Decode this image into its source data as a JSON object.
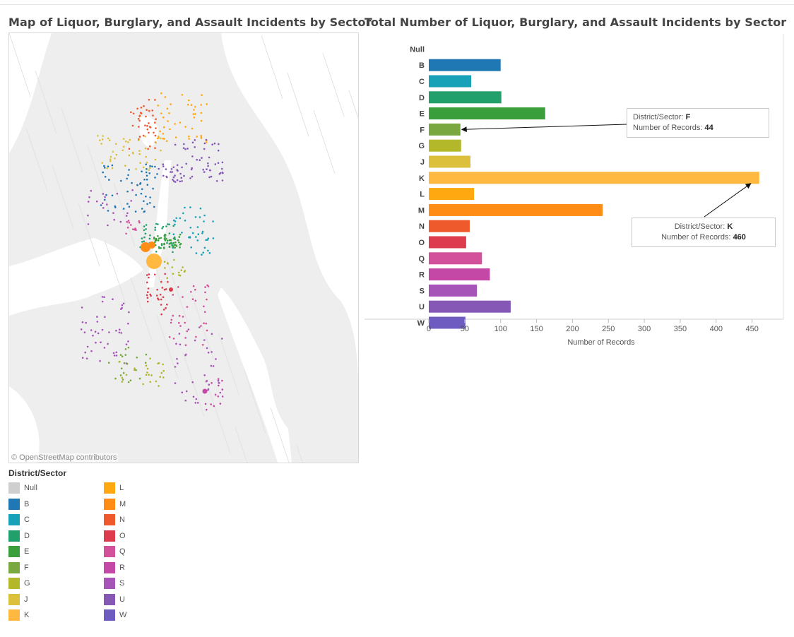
{
  "map": {
    "title": "Map of Liquor, Burglary, and Assault Incidents by Sector",
    "attribution": "© OpenStreetMap contributors"
  },
  "legend": {
    "title": "District/Sector",
    "items": [
      {
        "label": "Null",
        "color": "#cfcfcf"
      },
      {
        "label": "B",
        "color": "#1f77b4"
      },
      {
        "label": "C",
        "color": "#17a2b8"
      },
      {
        "label": "D",
        "color": "#22a06b"
      },
      {
        "label": "E",
        "color": "#3a9e3a"
      },
      {
        "label": "F",
        "color": "#79a841"
      },
      {
        "label": "G",
        "color": "#b3b82b"
      },
      {
        "label": "J",
        "color": "#dcbf3b"
      },
      {
        "label": "K",
        "color": "#ffb940"
      },
      {
        "label": "L",
        "color": "#ffa80f"
      },
      {
        "label": "M",
        "color": "#ff8c14"
      },
      {
        "label": "N",
        "color": "#ee5a2c"
      },
      {
        "label": "O",
        "color": "#dc3c4d"
      },
      {
        "label": "Q",
        "color": "#d3509a"
      },
      {
        "label": "R",
        "color": "#c448a6"
      },
      {
        "label": "S",
        "color": "#a754b8"
      },
      {
        "label": "U",
        "color": "#8558b6"
      },
      {
        "label": "W",
        "color": "#6f5cc0"
      }
    ]
  },
  "chart_data": {
    "type": "bar",
    "orientation": "horizontal",
    "title": "Total Number of Liquor, Burglary, and Assault Incidents by Sector",
    "xlabel": "Number of Records",
    "ylabel": "",
    "categories": [
      "Null",
      "B",
      "C",
      "D",
      "E",
      "F",
      "G",
      "J",
      "K",
      "L",
      "M",
      "N",
      "O",
      "Q",
      "R",
      "S",
      "U",
      "W"
    ],
    "values": [
      0,
      100,
      59,
      101,
      162,
      44,
      45,
      58,
      460,
      63,
      242,
      57,
      52,
      74,
      85,
      67,
      114,
      51
    ],
    "colors": [
      "#cfcfcf",
      "#1f77b4",
      "#17a2b8",
      "#22a06b",
      "#3a9e3a",
      "#79a841",
      "#b3b82b",
      "#dcbf3b",
      "#ffb940",
      "#ffa80f",
      "#ff8c14",
      "#ee5a2c",
      "#dc3c4d",
      "#d3509a",
      "#c448a6",
      "#a754b8",
      "#8558b6",
      "#6f5cc0"
    ],
    "xticks": [
      0,
      50,
      100,
      150,
      200,
      250,
      300,
      350,
      400,
      450
    ],
    "xlim": [
      0,
      470
    ],
    "grid": false,
    "annotations": [
      {
        "category": "F",
        "label": "District/Sector:",
        "key_value": "F",
        "count_label": "Number of Records:",
        "count": "44"
      },
      {
        "category": "K",
        "label": "District/Sector:",
        "key_value": "K",
        "count_label": "Number of Records:",
        "count": "460"
      }
    ]
  }
}
